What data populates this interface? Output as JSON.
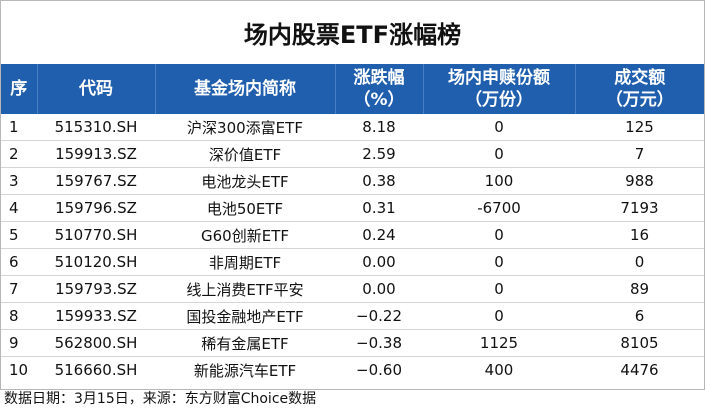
{
  "title": "场内股票ETF涨幅榜",
  "headers": {
    "seq": "序",
    "code": "代码",
    "name": "基金场内简称",
    "change_line1": "涨跌幅",
    "change_line2": "（%）",
    "redeem_line1": "场内申赎份额",
    "redeem_line2": "（万份）",
    "amount_line1": "成交额",
    "amount_line2": "（万元）"
  },
  "rows": [
    {
      "seq": "1",
      "code": "515310.SH",
      "name": "沪深300添富ETF",
      "change": "8.18",
      "redeem": "0",
      "amount": "125"
    },
    {
      "seq": "2",
      "code": "159913.SZ",
      "name": "深价值ETF",
      "change": "2.59",
      "redeem": "0",
      "amount": "7"
    },
    {
      "seq": "3",
      "code": "159767.SZ",
      "name": "电池龙头ETF",
      "change": "0.38",
      "redeem": "100",
      "amount": "988"
    },
    {
      "seq": "4",
      "code": "159796.SZ",
      "name": "电池50ETF",
      "change": "0.31",
      "redeem": "-6700",
      "amount": "7193"
    },
    {
      "seq": "5",
      "code": "510770.SH",
      "name": "G60创新ETF",
      "change": "0.24",
      "redeem": "0",
      "amount": "16"
    },
    {
      "seq": "6",
      "code": "510120.SH",
      "name": "非周期ETF",
      "change": "0.00",
      "redeem": "0",
      "amount": "0"
    },
    {
      "seq": "7",
      "code": "159793.SZ",
      "name": "线上消费ETF平安",
      "change": "0.00",
      "redeem": "0",
      "amount": "89"
    },
    {
      "seq": "8",
      "code": "159933.SZ",
      "name": "国投金融地产ETF",
      "change": "−0.22",
      "redeem": "0",
      "amount": "6"
    },
    {
      "seq": "9",
      "code": "562800.SH",
      "name": "稀有金属ETF",
      "change": "−0.38",
      "redeem": "1125",
      "amount": "8105"
    },
    {
      "seq": "10",
      "code": "516660.SH",
      "name": "新能源汽车ETF",
      "change": "−0.60",
      "redeem": "400",
      "amount": "4476"
    }
  ],
  "footer": "数据日期：3月15日，来源：东方财富Choice数据",
  "colors": {
    "header_bg": "#1f5fae",
    "header_text": "#ffffff"
  }
}
